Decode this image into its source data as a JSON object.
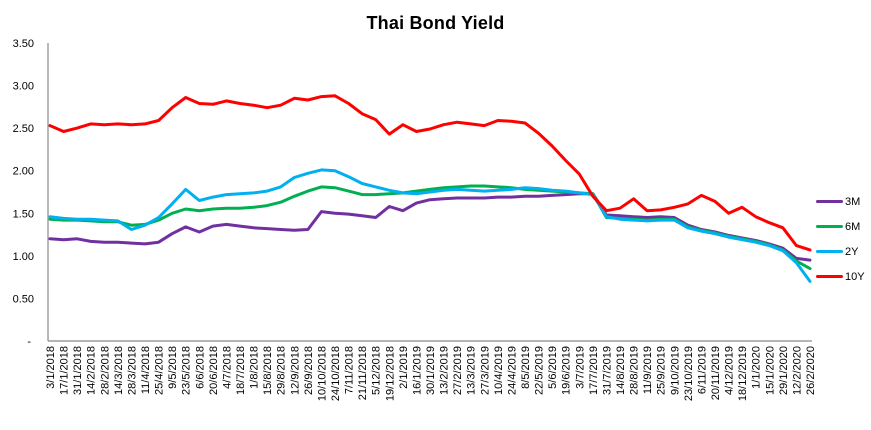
{
  "chart_data": {
    "type": "line",
    "title": "Thai Bond Yield",
    "xlabel": "",
    "ylabel": "",
    "grid": false,
    "legend_position": "right",
    "ylim": [
      0,
      3.5
    ],
    "axis_color": "#898989",
    "y_axis": {
      "ticks": [
        {
          "label": "3.50",
          "value": 3.5
        },
        {
          "label": "3.00",
          "value": 3.0
        },
        {
          "label": "2.50",
          "value": 2.5
        },
        {
          "label": "2.00",
          "value": 2.0
        },
        {
          "label": "1.50",
          "value": 1.5
        },
        {
          "label": "1.00",
          "value": 1.0
        },
        {
          "label": "0.50",
          "value": 0.5
        },
        {
          "label": "-",
          "value": 0.0
        }
      ]
    },
    "x_labels": [
      "3/1/2018",
      "17/1/2018",
      "31/1/2018",
      "14/2/2018",
      "28/2/2018",
      "14/3/2018",
      "28/3/2018",
      "11/4/2018",
      "25/4/2018",
      "9/5/2018",
      "23/5/2018",
      "6/6/2018",
      "20/6/2018",
      "4/7/2018",
      "18/7/2018",
      "1/8/2018",
      "15/8/2018",
      "29/8/2018",
      "12/9/2018",
      "26/9/2018",
      "10/10/2018",
      "24/10/2018",
      "7/11/2018",
      "21/11/2018",
      "5/12/2018",
      "19/12/2018",
      "2/1/2019",
      "16/1/2019",
      "30/1/2019",
      "13/2/2019",
      "27/2/2019",
      "13/3/2019",
      "27/3/2019",
      "10/4/2019",
      "24/4/2019",
      "8/5/2019",
      "22/5/2019",
      "5/6/2019",
      "19/6/2019",
      "3/7/2019",
      "17/7/2019",
      "31/7/2019",
      "14/8/2019",
      "28/8/2019",
      "11/9/2019",
      "25/9/2019",
      "9/10/2019",
      "23/10/2019",
      "6/11/2019",
      "20/11/2019",
      "4/12/2019",
      "18/12/2019",
      "1/1/2020",
      "15/1/2020",
      "29/1/2020",
      "12/2/2020",
      "26/2/2020"
    ],
    "series": [
      {
        "name": "3M",
        "color": "#7030A0",
        "values": [
          1.2,
          1.19,
          1.2,
          1.17,
          1.16,
          1.16,
          1.15,
          1.14,
          1.16,
          1.26,
          1.34,
          1.28,
          1.35,
          1.37,
          1.35,
          1.33,
          1.32,
          1.31,
          1.3,
          1.31,
          1.52,
          1.5,
          1.49,
          1.47,
          1.45,
          1.58,
          1.53,
          1.62,
          1.66,
          1.67,
          1.68,
          1.68,
          1.68,
          1.69,
          1.69,
          1.7,
          1.7,
          1.71,
          1.72,
          1.73,
          1.73,
          1.48,
          1.47,
          1.46,
          1.45,
          1.46,
          1.45,
          1.36,
          1.31,
          1.28,
          1.24,
          1.21,
          1.18,
          1.14,
          1.09,
          0.97,
          0.95
        ]
      },
      {
        "name": "6M",
        "color": "#00B050",
        "values": [
          1.43,
          1.42,
          1.42,
          1.41,
          1.4,
          1.4,
          1.36,
          1.37,
          1.42,
          1.5,
          1.55,
          1.53,
          1.55,
          1.56,
          1.56,
          1.57,
          1.59,
          1.63,
          1.7,
          1.76,
          1.81,
          1.8,
          1.76,
          1.72,
          1.72,
          1.73,
          1.74,
          1.76,
          1.78,
          1.8,
          1.81,
          1.82,
          1.82,
          1.81,
          1.8,
          1.78,
          1.77,
          1.76,
          1.75,
          1.74,
          1.73,
          1.45,
          1.44,
          1.43,
          1.42,
          1.43,
          1.43,
          1.34,
          1.3,
          1.27,
          1.23,
          1.2,
          1.17,
          1.13,
          1.07,
          0.94,
          0.85
        ]
      },
      {
        "name": "2Y",
        "color": "#00B0F0",
        "values": [
          1.46,
          1.44,
          1.43,
          1.43,
          1.42,
          1.41,
          1.31,
          1.36,
          1.45,
          1.61,
          1.78,
          1.65,
          1.69,
          1.72,
          1.73,
          1.74,
          1.76,
          1.81,
          1.92,
          1.97,
          2.01,
          2.0,
          1.93,
          1.85,
          1.81,
          1.77,
          1.74,
          1.73,
          1.75,
          1.77,
          1.78,
          1.77,
          1.76,
          1.77,
          1.78,
          1.8,
          1.79,
          1.77,
          1.76,
          1.74,
          1.72,
          1.46,
          1.43,
          1.42,
          1.41,
          1.42,
          1.42,
          1.33,
          1.29,
          1.26,
          1.22,
          1.19,
          1.16,
          1.12,
          1.06,
          0.92,
          0.7
        ]
      },
      {
        "name": "10Y",
        "color": "#FF0000",
        "values": [
          2.53,
          2.46,
          2.5,
          2.55,
          2.54,
          2.55,
          2.54,
          2.55,
          2.59,
          2.74,
          2.86,
          2.79,
          2.78,
          2.82,
          2.79,
          2.77,
          2.74,
          2.77,
          2.85,
          2.83,
          2.87,
          2.88,
          2.79,
          2.67,
          2.6,
          2.43,
          2.54,
          2.46,
          2.49,
          2.54,
          2.57,
          2.55,
          2.53,
          2.59,
          2.58,
          2.56,
          2.44,
          2.29,
          2.12,
          1.96,
          1.7,
          1.53,
          1.56,
          1.67,
          1.53,
          1.54,
          1.57,
          1.61,
          1.71,
          1.64,
          1.5,
          1.57,
          1.46,
          1.39,
          1.33,
          1.12,
          1.07
        ]
      }
    ]
  }
}
